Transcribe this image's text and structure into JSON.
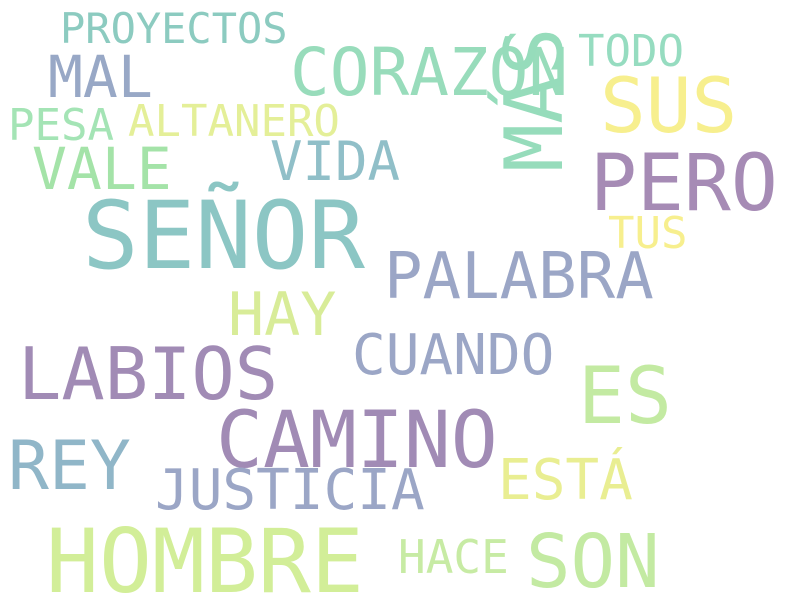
{
  "words": {
    "proyectos": {
      "text": "PROYECTOS",
      "color": "#8ccbc0"
    },
    "todo": {
      "text": "TODO",
      "color": "#96dcc0"
    },
    "mal": {
      "text": "MAL",
      "color": "#98a8c6"
    },
    "corazon": {
      "text": "CORAZÓN",
      "color": "#98dcbb"
    },
    "sus": {
      "text": "SUS",
      "color": "#f7ef8e"
    },
    "pesa": {
      "text": "PESA",
      "color": "#a4e4b5"
    },
    "altanero": {
      "text": "ALTANERO",
      "color": "#e4ef98"
    },
    "vale": {
      "text": "VALE",
      "color": "#a4e3a8"
    },
    "vida": {
      "text": "VIDA",
      "color": "#90bfc8"
    },
    "pero": {
      "text": "PERO",
      "color": "#a68bb5"
    },
    "mas": {
      "text": "MÁS",
      "color": "#96dcbb"
    },
    "tus": {
      "text": "TUS",
      "color": "#f7ef8e"
    },
    "senor": {
      "text": "SEÑOR",
      "color": "#8cc6c4"
    },
    "palabra": {
      "text": "PALABRA",
      "color": "#9ba6c6"
    },
    "hay": {
      "text": "HAY",
      "color": "#d8ec98"
    },
    "labios": {
      "text": "LABIOS",
      "color": "#a18bb5"
    },
    "cuando": {
      "text": "CUANDO",
      "color": "#9ba6c6"
    },
    "es": {
      "text": "ES",
      "color": "#c3eaa2"
    },
    "camino": {
      "text": "CAMINO",
      "color": "#a18bb5"
    },
    "rey": {
      "text": "REY",
      "color": "#90b6c8"
    },
    "justicia": {
      "text": "JUSTICIA",
      "color": "#9ba6c6"
    },
    "esta": {
      "text": "ESTÁ",
      "color": "#e9ee92"
    },
    "hombre": {
      "text": "HOMBRE",
      "color": "#d2ee98"
    },
    "hace": {
      "text": "HACE",
      "color": "#c7eba4"
    },
    "son": {
      "text": "SON",
      "color": "#c3eaa2"
    }
  }
}
